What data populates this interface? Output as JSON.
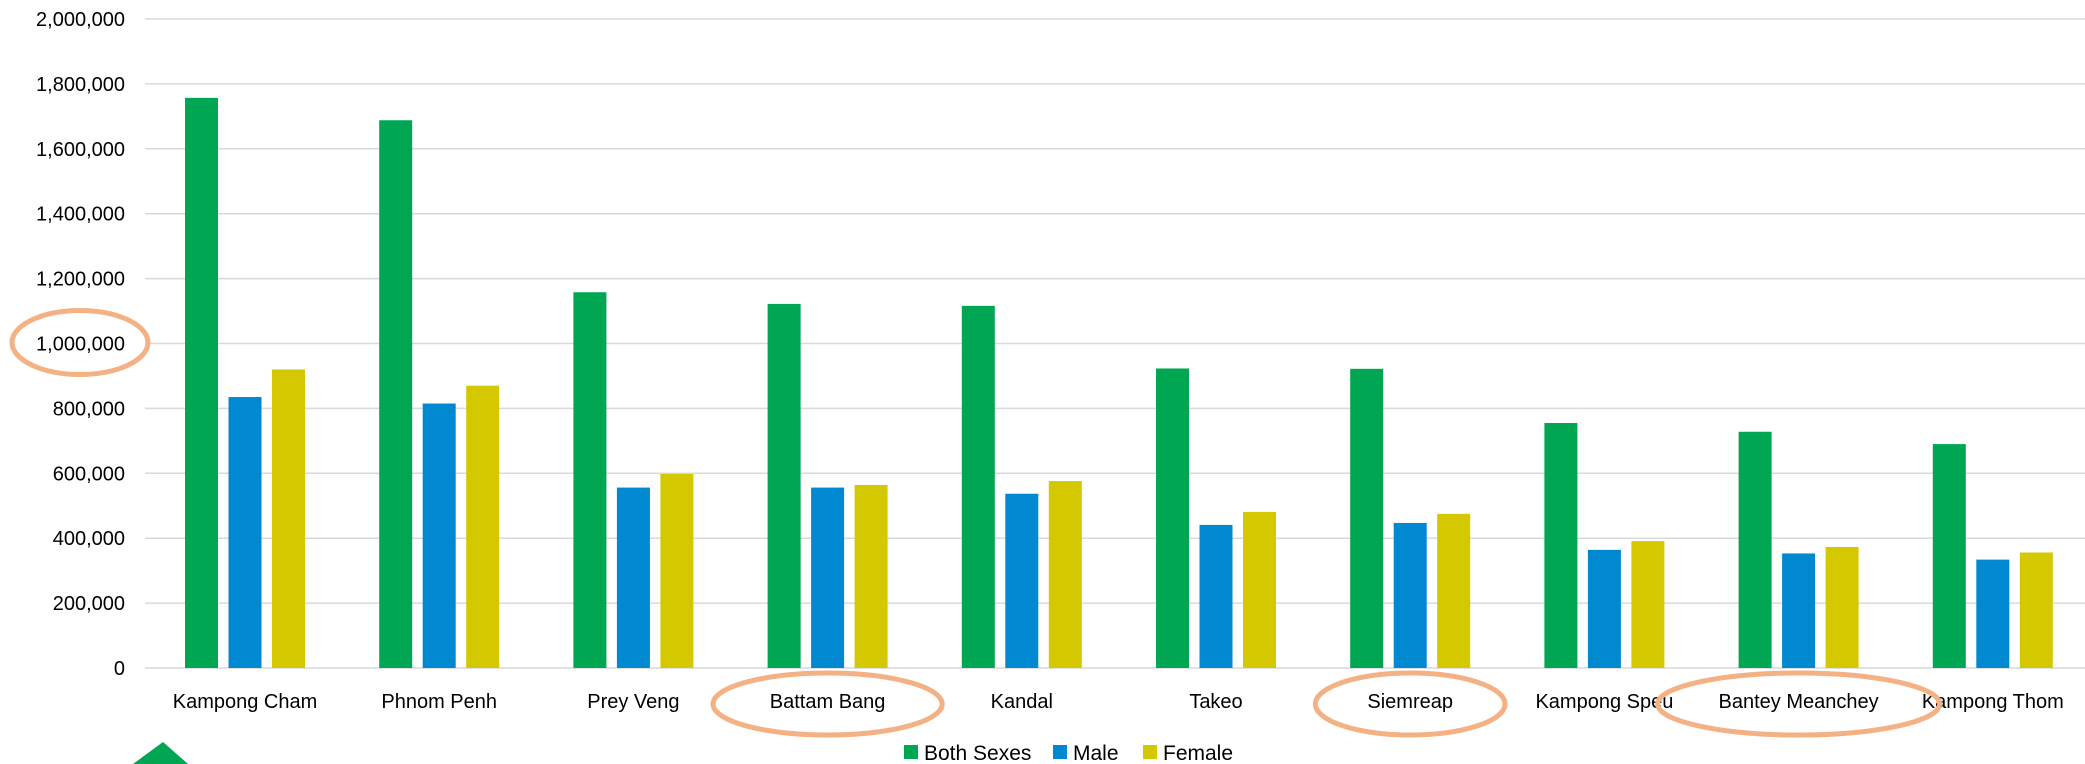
{
  "chart_data": {
    "type": "bar",
    "categories": [
      "Kampong Cham",
      "Phnom Penh",
      "Prey Veng",
      "Battam Bang",
      "Kandal",
      "Takeo",
      "Siemreap",
      "Kampong Speu",
      "Bantey Meanchey",
      "Kampong Thom"
    ],
    "series": [
      {
        "name": "Both Sexes",
        "color": "#00A651",
        "values": [
          1757000,
          1688000,
          1158000,
          1122000,
          1116000,
          923000,
          922000,
          755000,
          728000,
          690000
        ]
      },
      {
        "name": "Male",
        "color": "#0088D1",
        "values": [
          835000,
          815000,
          556000,
          556000,
          537000,
          441000,
          447000,
          364000,
          353000,
          334000
        ]
      },
      {
        "name": "Female",
        "color": "#D4C800",
        "values": [
          920000,
          870000,
          598000,
          564000,
          576000,
          481000,
          475000,
          391000,
          373000,
          356000
        ]
      }
    ],
    "ylim": [
      0,
      2000000
    ],
    "yticks": [
      0,
      200000,
      400000,
      600000,
      800000,
      1000000,
      1200000,
      1400000,
      1600000,
      1800000,
      2000000
    ],
    "ytick_labels": [
      "0",
      "200,000",
      "400,000",
      "600,000",
      "800,000",
      "1,000,000",
      "1,200,000",
      "1,400,000",
      "1,600,000",
      "1,800,000",
      "2,000,000"
    ],
    "grid": true,
    "legend_position": "bottom-center",
    "highlights": {
      "color": "#F4B183",
      "ytick": "1,000,000",
      "categories": [
        "Battam Bang",
        "Siemreap",
        "Bantey Meanchey"
      ]
    },
    "logo_color": "#00A651"
  }
}
